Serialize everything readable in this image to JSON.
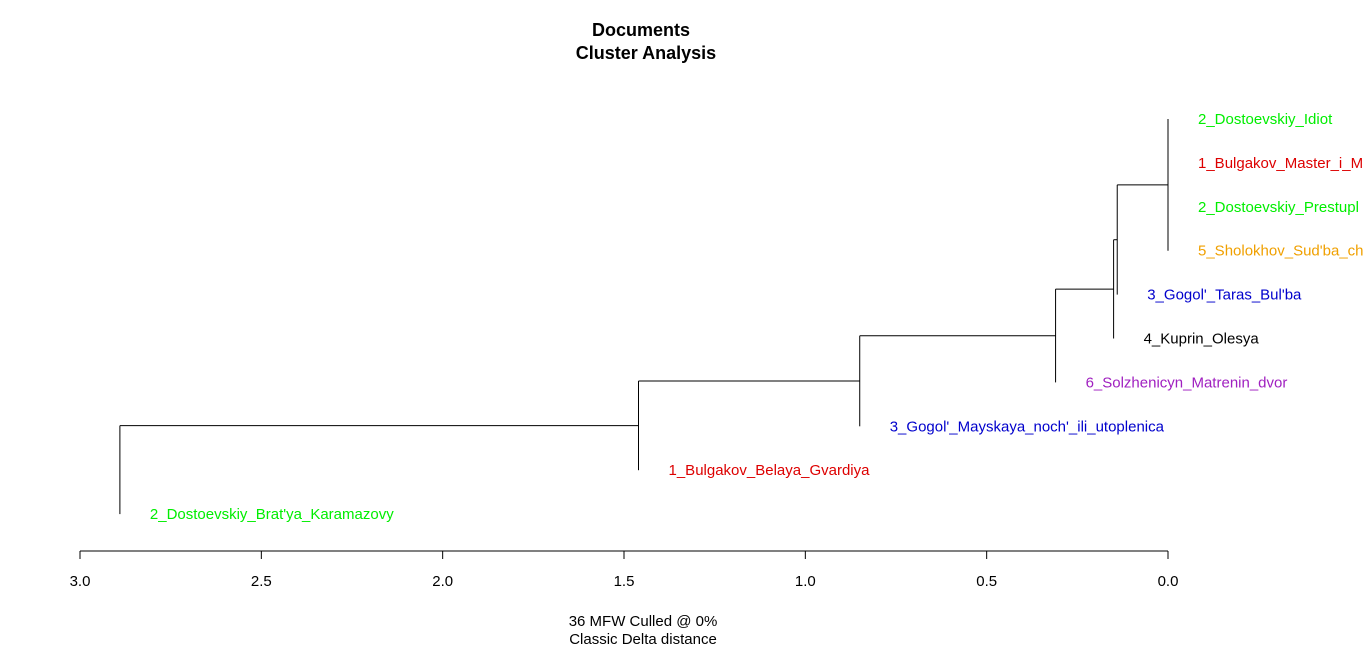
{
  "chart_data": {
    "type": "dendrogram",
    "title": [
      "Documents",
      "Cluster Analysis"
    ],
    "xlabel": [
      "36 MFW  Culled @ 0%",
      "Classic Delta distance"
    ],
    "xlim": [
      3.0,
      0.0
    ],
    "xticks": [
      3.0,
      2.5,
      2.0,
      1.5,
      1.0,
      0.5,
      0.0
    ],
    "xtick_labels": [
      "3.0",
      "2.5",
      "2.0",
      "1.5",
      "1.0",
      "0.5",
      "0.0"
    ],
    "leaves": [
      {
        "label": "2_Dostoevskiy_Idiot",
        "color": "#00ee00"
      },
      {
        "label": "1_Bulgakov_Master_i_M",
        "color": "#dd0000"
      },
      {
        "label": "2_Dostoevskiy_Prestupl",
        "color": "#00ee00"
      },
      {
        "label": "5_Sholokhov_Sud'ba_ch",
        "color": "#f0a000"
      },
      {
        "label": "3_Gogol'_Taras_Bul'ba",
        "color": "#0000cc"
      },
      {
        "label": "4_Kuprin_Olesya",
        "color": "#000000"
      },
      {
        "label": "6_Solzhenicyn_Matrenin_dvor",
        "color": "#a020c0"
      },
      {
        "label": "3_Gogol'_Mayskaya_noch'_ili_utoplenica",
        "color": "#0000cc"
      },
      {
        "label": "1_Bulgakov_Belaya_Gvardiya",
        "color": "#dd0000"
      },
      {
        "label": "2_Dostoevskiy_Brat'ya_Karamazovy",
        "color": "#00ee00"
      }
    ],
    "merges": [
      {
        "members": [
          0,
          1,
          2,
          3
        ],
        "height": 0.0
      },
      {
        "members": [
          0,
          1,
          2,
          3,
          4
        ],
        "height": 0.14
      },
      {
        "members": [
          0,
          1,
          2,
          3,
          4,
          5
        ],
        "height": 0.15
      },
      {
        "members": [
          0,
          1,
          2,
          3,
          4,
          5,
          6
        ],
        "height": 0.31
      },
      {
        "members": [
          0,
          1,
          2,
          3,
          4,
          5,
          6,
          7
        ],
        "height": 0.85
      },
      {
        "members": [
          0,
          1,
          2,
          3,
          4,
          5,
          6,
          7,
          8
        ],
        "height": 1.46
      },
      {
        "members": [
          0,
          1,
          2,
          3,
          4,
          5,
          6,
          7,
          8,
          9
        ],
        "height": 2.89
      }
    ],
    "leaf_heights": [
      0.0,
      0.0,
      0.0,
      0.0,
      0.14,
      0.15,
      0.31,
      0.85,
      1.46,
      2.89
    ]
  }
}
